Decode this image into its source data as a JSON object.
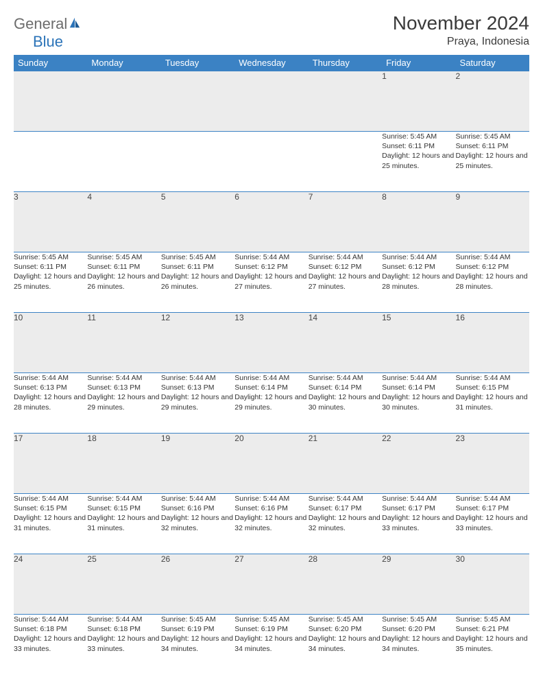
{
  "logo": {
    "text1": "General",
    "text2": "Blue"
  },
  "title": "November 2024",
  "location": "Praya, Indonesia",
  "colors": {
    "header_bg": "#3b82c4",
    "header_text": "#ffffff",
    "daynum_bg": "#ececec",
    "border": "#3b82c4",
    "text": "#333333",
    "logo_gray": "#6c6c6c",
    "logo_blue": "#2b73b8"
  },
  "weekdays": [
    "Sunday",
    "Monday",
    "Tuesday",
    "Wednesday",
    "Thursday",
    "Friday",
    "Saturday"
  ],
  "weeks": [
    [
      null,
      null,
      null,
      null,
      null,
      {
        "n": "1",
        "sr": "5:45 AM",
        "ss": "6:11 PM",
        "dl": "12 hours and 25 minutes."
      },
      {
        "n": "2",
        "sr": "5:45 AM",
        "ss": "6:11 PM",
        "dl": "12 hours and 25 minutes."
      }
    ],
    [
      {
        "n": "3",
        "sr": "5:45 AM",
        "ss": "6:11 PM",
        "dl": "12 hours and 25 minutes."
      },
      {
        "n": "4",
        "sr": "5:45 AM",
        "ss": "6:11 PM",
        "dl": "12 hours and 26 minutes."
      },
      {
        "n": "5",
        "sr": "5:45 AM",
        "ss": "6:11 PM",
        "dl": "12 hours and 26 minutes."
      },
      {
        "n": "6",
        "sr": "5:44 AM",
        "ss": "6:12 PM",
        "dl": "12 hours and 27 minutes."
      },
      {
        "n": "7",
        "sr": "5:44 AM",
        "ss": "6:12 PM",
        "dl": "12 hours and 27 minutes."
      },
      {
        "n": "8",
        "sr": "5:44 AM",
        "ss": "6:12 PM",
        "dl": "12 hours and 28 minutes."
      },
      {
        "n": "9",
        "sr": "5:44 AM",
        "ss": "6:12 PM",
        "dl": "12 hours and 28 minutes."
      }
    ],
    [
      {
        "n": "10",
        "sr": "5:44 AM",
        "ss": "6:13 PM",
        "dl": "12 hours and 28 minutes."
      },
      {
        "n": "11",
        "sr": "5:44 AM",
        "ss": "6:13 PM",
        "dl": "12 hours and 29 minutes."
      },
      {
        "n": "12",
        "sr": "5:44 AM",
        "ss": "6:13 PM",
        "dl": "12 hours and 29 minutes."
      },
      {
        "n": "13",
        "sr": "5:44 AM",
        "ss": "6:14 PM",
        "dl": "12 hours and 29 minutes."
      },
      {
        "n": "14",
        "sr": "5:44 AM",
        "ss": "6:14 PM",
        "dl": "12 hours and 30 minutes."
      },
      {
        "n": "15",
        "sr": "5:44 AM",
        "ss": "6:14 PM",
        "dl": "12 hours and 30 minutes."
      },
      {
        "n": "16",
        "sr": "5:44 AM",
        "ss": "6:15 PM",
        "dl": "12 hours and 31 minutes."
      }
    ],
    [
      {
        "n": "17",
        "sr": "5:44 AM",
        "ss": "6:15 PM",
        "dl": "12 hours and 31 minutes."
      },
      {
        "n": "18",
        "sr": "5:44 AM",
        "ss": "6:15 PM",
        "dl": "12 hours and 31 minutes."
      },
      {
        "n": "19",
        "sr": "5:44 AM",
        "ss": "6:16 PM",
        "dl": "12 hours and 32 minutes."
      },
      {
        "n": "20",
        "sr": "5:44 AM",
        "ss": "6:16 PM",
        "dl": "12 hours and 32 minutes."
      },
      {
        "n": "21",
        "sr": "5:44 AM",
        "ss": "6:17 PM",
        "dl": "12 hours and 32 minutes."
      },
      {
        "n": "22",
        "sr": "5:44 AM",
        "ss": "6:17 PM",
        "dl": "12 hours and 33 minutes."
      },
      {
        "n": "23",
        "sr": "5:44 AM",
        "ss": "6:17 PM",
        "dl": "12 hours and 33 minutes."
      }
    ],
    [
      {
        "n": "24",
        "sr": "5:44 AM",
        "ss": "6:18 PM",
        "dl": "12 hours and 33 minutes."
      },
      {
        "n": "25",
        "sr": "5:44 AM",
        "ss": "6:18 PM",
        "dl": "12 hours and 33 minutes."
      },
      {
        "n": "26",
        "sr": "5:45 AM",
        "ss": "6:19 PM",
        "dl": "12 hours and 34 minutes."
      },
      {
        "n": "27",
        "sr": "5:45 AM",
        "ss": "6:19 PM",
        "dl": "12 hours and 34 minutes."
      },
      {
        "n": "28",
        "sr": "5:45 AM",
        "ss": "6:20 PM",
        "dl": "12 hours and 34 minutes."
      },
      {
        "n": "29",
        "sr": "5:45 AM",
        "ss": "6:20 PM",
        "dl": "12 hours and 34 minutes."
      },
      {
        "n": "30",
        "sr": "5:45 AM",
        "ss": "6:21 PM",
        "dl": "12 hours and 35 minutes."
      }
    ]
  ],
  "labels": {
    "sunrise": "Sunrise:",
    "sunset": "Sunset:",
    "daylight": "Daylight:"
  }
}
